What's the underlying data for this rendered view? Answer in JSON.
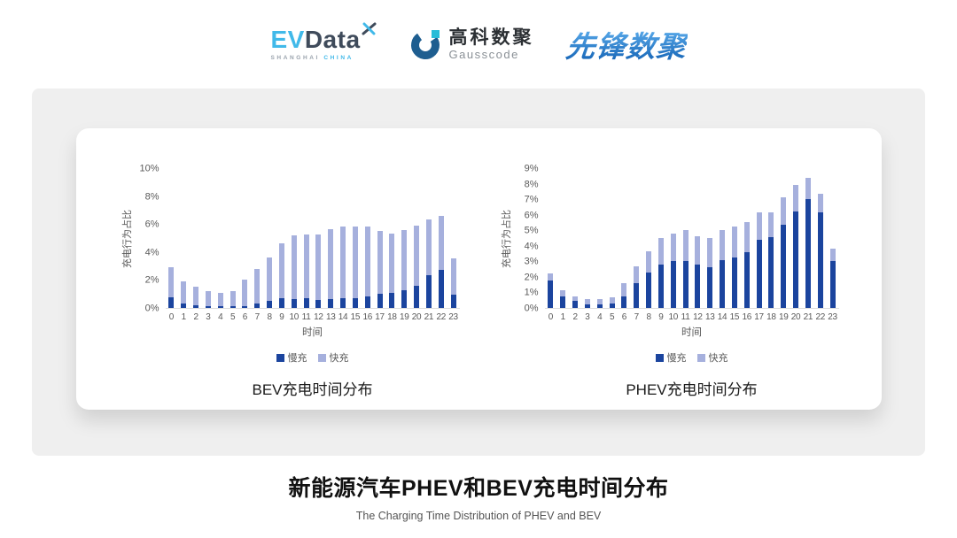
{
  "header": {
    "evdata": {
      "ev": "EV",
      "data": "Data",
      "sub_left": "SHANGHAI",
      "sub_right": "CHINA"
    },
    "gausscode": {
      "cn": "高科数聚",
      "en": "Gausscode"
    },
    "pioneer": {
      "text": "先锋数聚"
    }
  },
  "colors": {
    "slow": "#1b449e",
    "fast": "#a6b0dd",
    "axis_text": "#595959",
    "evdata_cyan": "#41b9e9",
    "evdata_dark": "#3f4b5b",
    "gausscode_blue": "#1e5e90",
    "gausscode_cyan": "#29bcd8",
    "pioneer_blue": "#2b7fd2"
  },
  "chart_data": [
    {
      "type": "bar",
      "stacked": true,
      "title": "BEV充电时间分布",
      "xlabel": "时间",
      "ylabel": "充电行为占比",
      "ylim": [
        0,
        10
      ],
      "ystep": 2,
      "grid": false,
      "legend_position": "bottom",
      "categories": [
        "0",
        "1",
        "2",
        "3",
        "4",
        "5",
        "6",
        "7",
        "8",
        "9",
        "10",
        "11",
        "12",
        "13",
        "14",
        "15",
        "16",
        "17",
        "18",
        "19",
        "20",
        "21",
        "22",
        "23"
      ],
      "series": [
        {
          "name": "慢充",
          "values": [
            0.75,
            0.35,
            0.2,
            0.1,
            0.1,
            0.1,
            0.15,
            0.35,
            0.5,
            0.7,
            0.65,
            0.7,
            0.6,
            0.65,
            0.7,
            0.7,
            0.8,
            1.0,
            1.1,
            1.3,
            1.6,
            2.35,
            2.7,
            0.95
          ]
        },
        {
          "name": "快充",
          "values": [
            2.15,
            1.55,
            1.3,
            1.1,
            1.0,
            1.1,
            1.85,
            2.45,
            3.1,
            3.9,
            4.55,
            4.55,
            4.65,
            5.0,
            5.1,
            5.1,
            5.05,
            4.5,
            4.2,
            4.3,
            4.3,
            4.0,
            3.9,
            2.6
          ]
        }
      ]
    },
    {
      "type": "bar",
      "stacked": true,
      "title": "PHEV充电时间分布",
      "xlabel": "时间",
      "ylabel": "充电行为占比",
      "ylim": [
        0,
        9
      ],
      "ystep": 1,
      "grid": false,
      "legend_position": "bottom",
      "categories": [
        "0",
        "1",
        "2",
        "3",
        "4",
        "5",
        "6",
        "7",
        "8",
        "9",
        "10",
        "11",
        "12",
        "13",
        "14",
        "15",
        "16",
        "17",
        "18",
        "19",
        "20",
        "21",
        "22",
        "23"
      ],
      "series": [
        {
          "name": "慢充",
          "values": [
            1.75,
            0.75,
            0.45,
            0.25,
            0.25,
            0.3,
            0.75,
            1.6,
            2.3,
            2.8,
            3.0,
            3.0,
            2.8,
            2.65,
            3.1,
            3.25,
            3.6,
            4.4,
            4.55,
            5.35,
            6.2,
            7.0,
            6.15,
            3.05
          ]
        },
        {
          "name": "快充",
          "values": [
            0.5,
            0.4,
            0.3,
            0.3,
            0.3,
            0.4,
            0.85,
            1.1,
            1.35,
            1.7,
            1.8,
            2.0,
            1.8,
            1.85,
            1.9,
            2.0,
            1.9,
            1.75,
            1.6,
            1.75,
            1.75,
            1.4,
            1.2,
            0.8
          ]
        }
      ]
    }
  ],
  "footer": {
    "title": "新能源汽车PHEV和BEV充电时间分布",
    "subtitle": "The Charging Time Distribution of PHEV and BEV"
  }
}
